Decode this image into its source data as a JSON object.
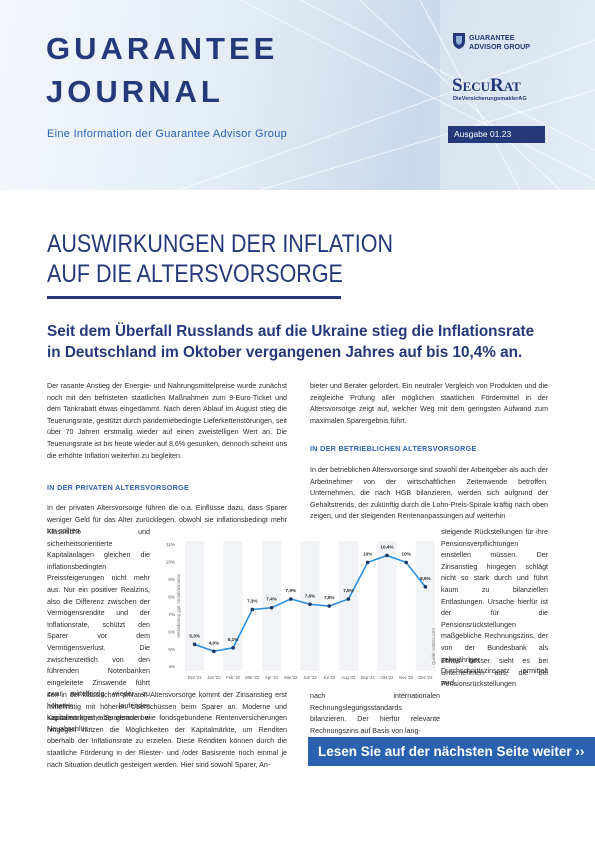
{
  "header": {
    "title_line1": "GUARANTEE",
    "title_line2": "JOURNAL",
    "subtitle": "Eine Information der Guarantee Advisor Group",
    "logo_group_line1": "GUARANTEE",
    "logo_group_line2": "ADVISOR GROUP",
    "logo_securat": "SecuRat",
    "logo_tagline": "DieVersicherungsmaklerAG",
    "issue": "Ausgabe 01.23"
  },
  "article": {
    "title_line1": "AUSWIRKUNGEN DER INFLATION",
    "title_line2": "AUF DIE ALTERSVORSORGE",
    "lead_line1": "Seit dem Überfall Russlands auf die Ukraine stieg die Inflationsrate",
    "lead_line2": "in Deutschland im Oktober vergangenen Jahres auf bis 10,4% an.",
    "left_p1": "Der rasante Anstieg der Energie- und Nahrungsmittelpreise wurde zunächst noch mit den befristeten staatlichen Maßnahmen zum 9-Euro-Ticket und dem Tankrabatt etwas eingedämmt. Nach deren Ablauf im August stieg die Teuerungsrate, gestützt durch pandemiebedingte Lieferkettenstörungen, seit über 70 Jahren erstmalig wieder auf einen zweistelligen Wert an. Die Teuerungsrate ist bis heute wieder auf 8,6% gesunken, dennoch scheint uns die erhöhte Inflation weiterhin zu begleiten.",
    "left_heading": "IN DER PRIVATEN ALTERSVORSORGE",
    "left_p2a": "In der privaten Altersvorsorge führen die o.a. Einflüsse dazu, dass Sparer weniger Geld für das Alter zurücklegen, obwohl sie inflationsbedingt mehr tun sollten.",
    "left_p2b": "Klassische und sicherheitsorientierte Kapitalanlagen gleichen die inflationsbedingten Preissteigerungen nicht mehr aus. Nur ein positiver Realzins, also die Differenz zwischen der Vermögensrendite und der Inflationsrate, schützt den Sparer vor dem Vermögensverlust. Die zwischenzeitlich von den führenden Notenbanken eingeleitete Zinswende führt zwar mittelfristig wieder zu höheren laufenden Kapitalerträgen, aber gerade bei Neuabschlüs-",
    "left_p2c": "sen in der klassischen privaten Altersvorsorge kommt der Zinsanstieg erst mittelfristig mit höheren Überschüssen beim Sparer an. Moderne und kapitalmarktnahe Sparformen wie fondsgebundene Rentenversicherungen hingegen nutzen die Möglichkeiten der Kapitalmärkte, um Renditen oberhalb der Inflationsrate zu erzielen. Diese Renditen können durch die staatliche Förderung in der Riester- und /oder Basisrente noch einmal je nach Situation deutlich gesteigert werden. Hier sind sowohl Sparer, An-",
    "right_p1": "bieter und Berater gefordert. Ein neutraler Vergleich von Produkten und die zeitgleiche Prüfung aller möglichen staatlichen Fördermittel in der Altersvorsorge zeigt auf, welcher Weg mit dem geringsten Aufwand zum maximalen Sparergebnis führt.",
    "right_heading": "IN DER BETRIEBLICHEN ALTERSVORSORGE",
    "right_p2a": "In der betrieblichen Altersvorsorge sind sowohl der Arbeitgeber als auch der Arbeitnehmer von der wirtschaftlichen Zeitenwende betroffen. Unternehmen, die nach HGB bilanzieren, werden sich aufgrund der Gehaltstrends, der zukünftig durch die Lohn-Preis-Spirale kräftig nach oben zeigen, und der steigenden Rentenanpassungen auf weiterhin",
    "right_p2b": "steigende Rückstellungen für ihre Pensionsverpflichtungen einstellen müssen. Der Zinsanstieg hingegen schlägt nicht so stark durch und führt kaum zu bilanziellen Entlastungen. Ursache hierfür ist der für die Pensionsrückstellungen maßgebliche Rechnungszins, der von der Bundesbank als zehnjähriger Durchschnittszinssatz ermittelt wird.",
    "right_p3a": "Etwas besser sieht es bei Unternehmen aus, die bei Pensionsrückstellungen",
    "right_p3b": "nach internationalen Rechnungslegungsstandards bilanzieren. Der hierfür relevante Rechnungszins auf Basis von lang-"
  },
  "chart_data": {
    "type": "line",
    "y_label": "Veränderung ggü. Vorjahresmonat",
    "source": "Quelle: statista.com",
    "categories": [
      "Dez '21",
      "Jan '22",
      "Feb '22",
      "Mär '22",
      "Apr '22",
      "Mai '22",
      "Jun '22",
      "Jul '22",
      "Aug '22",
      "Sep '22",
      "Okt '22",
      "Nov '22",
      "Dez '22"
    ],
    "values": [
      5.3,
      4.9,
      5.1,
      7.3,
      7.4,
      7.9,
      7.6,
      7.5,
      7.9,
      10,
      10.4,
      10,
      8.6
    ],
    "value_labels": [
      "5,3%",
      "4,9%",
      "5,1%",
      "7,3%",
      "7,4%",
      "7,9%",
      "7,6%",
      "7,5%",
      "7,9%",
      "10%",
      "10,4%",
      "10%",
      "8,6%"
    ],
    "color": "#2b8fe0",
    "marker_color": "#1c3664",
    "ylim": [
      4,
      11
    ],
    "yticks": [
      {
        "value": 4,
        "label": "4%"
      },
      {
        "value": 5,
        "label": "5%"
      },
      {
        "value": 6,
        "label": "6%"
      },
      {
        "value": 7,
        "label": "7%"
      },
      {
        "value": 8,
        "label": "8%"
      },
      {
        "value": 9,
        "label": "9%"
      },
      {
        "value": 10,
        "label": "10%"
      },
      {
        "value": 11,
        "label": "11%"
      }
    ],
    "grid": false
  },
  "footer": {
    "continue": "Lesen Sie auf der nächsten Seite weiter ››"
  }
}
